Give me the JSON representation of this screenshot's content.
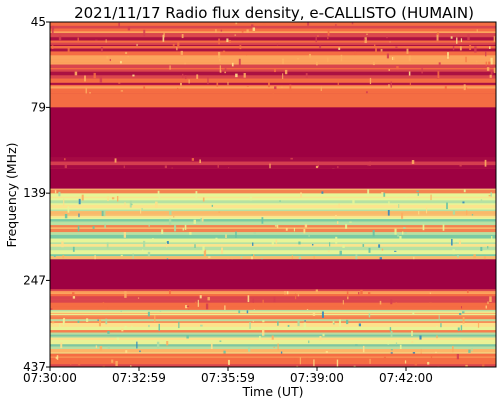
{
  "chart_data": {
    "type": "heatmap",
    "title": "2021/11/17  Radio flux density, e-CALLISTO (HUMAIN)",
    "xlabel": "Time (UT)",
    "ylabel": "Frequency (MHz)",
    "x_ticks": [
      "07:30:00",
      "07:32:59",
      "07:35:59",
      "07:39:00",
      "07:42:00"
    ],
    "y_ticks": [
      "45",
      "79",
      "139",
      "247",
      "437"
    ],
    "y_scale": "log",
    "y_inverted": true,
    "ylim": [
      45,
      437
    ],
    "xlim": [
      "07:30:00",
      "07:45:00"
    ],
    "colormap": "Spectral",
    "colors": {
      "dark_red": "#9e0142",
      "red": "#d53e4f",
      "orange": "#f46d43",
      "light_orange": "#fdae61",
      "yellow": "#fee08b",
      "light_yellow": "#e6f598",
      "green": "#abdda4",
      "teal": "#66c2a5",
      "blue": "#3288bd"
    },
    "bands": [
      {
        "freq_range": [
          45,
          72
        ],
        "level": "red-orange, striped"
      },
      {
        "freq_range": [
          72,
          79
        ],
        "level": "orange"
      },
      {
        "freq_range": [
          79,
          110
        ],
        "level": "dark red"
      },
      {
        "freq_range": [
          110,
          118
        ],
        "level": "red"
      },
      {
        "freq_range": [
          118,
          135
        ],
        "level": "dark red"
      },
      {
        "freq_range": [
          135,
          215
        ],
        "level": "yellow-green, high intensity"
      },
      {
        "freq_range": [
          215,
          262
        ],
        "level": "dark red"
      },
      {
        "freq_range": [
          262,
          300
        ],
        "level": "red-orange"
      },
      {
        "freq_range": [
          300,
          400
        ],
        "level": "yellow-green, high intensity"
      },
      {
        "freq_range": [
          400,
          437
        ],
        "level": "orange"
      }
    ]
  }
}
